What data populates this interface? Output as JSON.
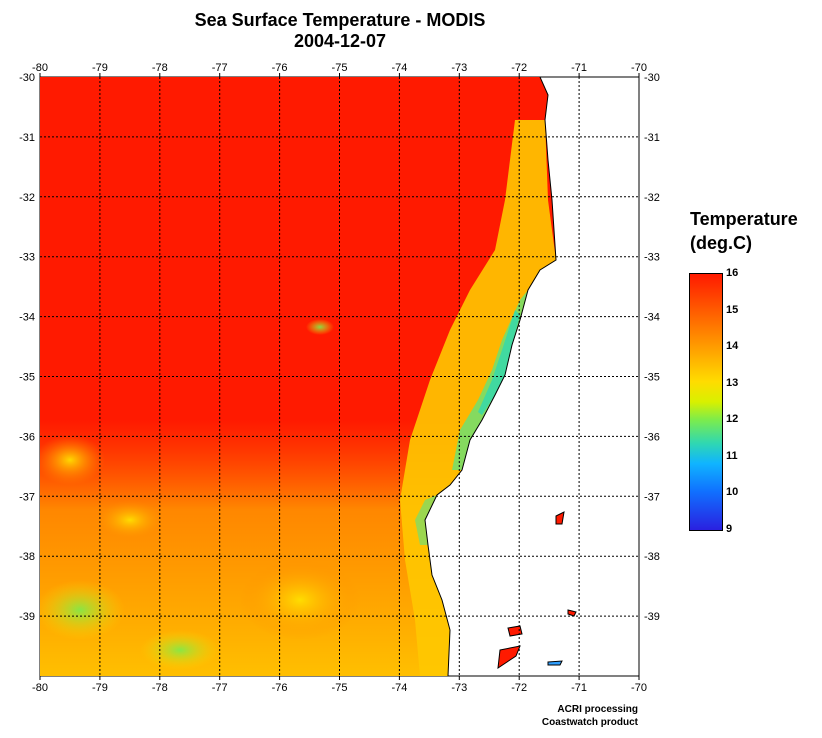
{
  "title": {
    "line1": "Sea Surface Temperature - MODIS",
    "line2": "2004-12-07"
  },
  "map": {
    "lon_ticks": [
      "-80",
      "-79",
      "-78",
      "-77",
      "-76",
      "-75",
      "-74",
      "-73",
      "-72",
      "-71",
      "-70"
    ],
    "lat_ticks": [
      "-30",
      "-31",
      "-32",
      "-33",
      "-34",
      "-35",
      "-36",
      "-37",
      "-38",
      "-39"
    ],
    "lon_range": [
      -80,
      -70
    ],
    "lat_range": [
      -40,
      -30
    ],
    "grid": "dotted",
    "colors": {
      "land": "#ffffff",
      "ocean_warm": "#ff1a00",
      "ocean_mid": "#ffdc00",
      "ocean_cool": "#30d8b0",
      "coastline": "#000000"
    }
  },
  "legend": {
    "title_line1": "Temperature",
    "title_line2": "(deg.C)",
    "labels": [
      "16",
      "15",
      "14",
      "13",
      "12",
      "11",
      "10",
      "9"
    ],
    "range": [
      9,
      16
    ]
  },
  "credits": {
    "line1": "ACRI processing",
    "line2": "Coastwatch product"
  }
}
